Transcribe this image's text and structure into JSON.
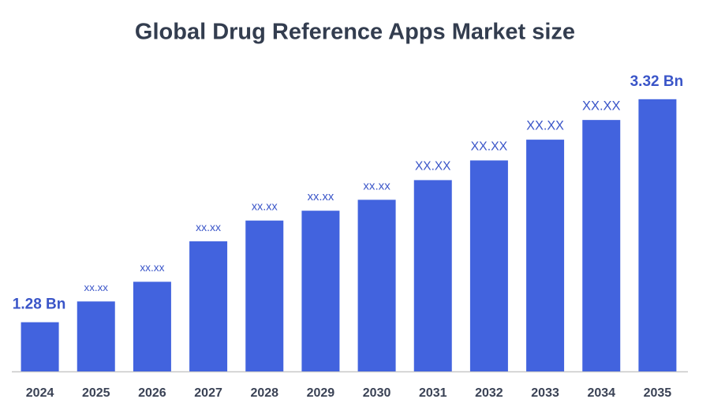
{
  "chart_data": {
    "type": "bar",
    "title": "Global Drug Reference Apps Market size",
    "categories": [
      "2024",
      "2025",
      "2026",
      "2027",
      "2028",
      "2029",
      "2030",
      "2031",
      "2032",
      "2033",
      "2034",
      "2035"
    ],
    "values": [
      1.28,
      1.47,
      1.65,
      2.02,
      2.21,
      2.3,
      2.4,
      2.58,
      2.76,
      2.95,
      3.13,
      3.32
    ],
    "value_labels": [
      "1.28 Bn",
      "xx.xx",
      "xx.xx",
      "xx.xx",
      "xx.xx",
      "xx.xx",
      "xx.xx",
      "XX.XX",
      "XX.XX",
      "XX.XX",
      "XX.XX",
      "3.32 Bn"
    ],
    "color": "#4263de",
    "ylim": [
      0.83,
      3.6
    ]
  }
}
